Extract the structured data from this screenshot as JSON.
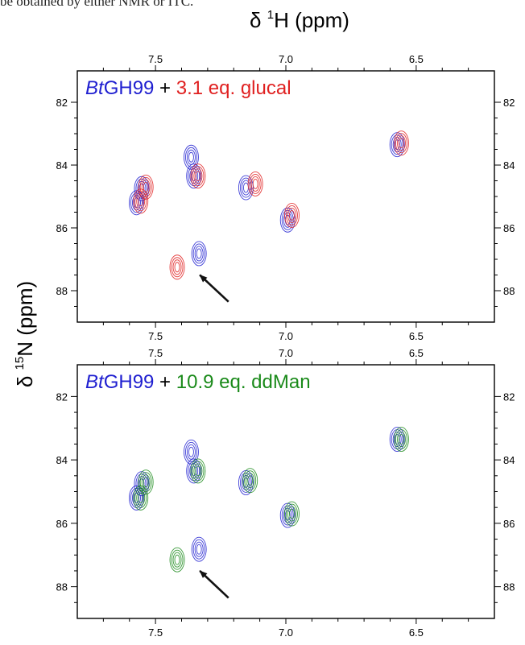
{
  "top_text": "be obtained by either NMR or ITC.",
  "header": {
    "x_title_prefix": "δ ",
    "x_title_sup": "1",
    "x_title_suffix": "H (ppm)",
    "y_title_prefix": "δ ",
    "y_title_sup": "15",
    "y_title_suffix": "N (ppm)"
  },
  "colors": {
    "blue": "#1f1fd0",
    "red": "#e02020",
    "green": "#1a8a1a",
    "black": "#000000",
    "arrow": "#111111"
  },
  "chart_data": [
    {
      "type": "scatter",
      "xlabel": "δ 1H (ppm)",
      "ylabel": "δ 15N (ppm)",
      "xlim": [
        7.8,
        6.2
      ],
      "ylim": [
        89,
        81
      ],
      "x_ticks": [
        "7.5",
        "7.0",
        "6.5"
      ],
      "y_ticks": [
        "82",
        "84",
        "86",
        "88"
      ],
      "title_parts": {
        "prefix_italic": "Bt",
        "prefix": "GH99",
        "plus": " + ",
        "ligand": "3.1 eq. glucal"
      },
      "series": [
        {
          "name": "BtGH99",
          "color": "blue",
          "peaks": [
            {
              "x": 7.55,
              "y": 84.75
            },
            {
              "x": 7.57,
              "y": 85.2
            },
            {
              "x": 7.35,
              "y": 84.35
            },
            {
              "x": 7.36,
              "y": 83.75
            },
            {
              "x": 7.15,
              "y": 84.72
            },
            {
              "x": 6.99,
              "y": 85.75
            },
            {
              "x": 6.57,
              "y": 83.35
            },
            {
              "x": 7.33,
              "y": 86.82
            }
          ]
        },
        {
          "name": "3.1 eq. glucal",
          "color": "red",
          "peaks": [
            {
              "x": 7.54,
              "y": 84.7
            },
            {
              "x": 7.56,
              "y": 85.15
            },
            {
              "x": 7.34,
              "y": 84.35
            },
            {
              "x": 7.12,
              "y": 84.6
            },
            {
              "x": 6.98,
              "y": 85.6
            },
            {
              "x": 6.56,
              "y": 83.3
            },
            {
              "x": 7.42,
              "y": 87.25
            }
          ]
        }
      ],
      "arrow": {
        "from": [
          7.22,
          88.35
        ],
        "to": [
          7.33,
          87.5
        ]
      }
    },
    {
      "type": "scatter",
      "xlabel": "δ 1H (ppm)",
      "ylabel": "δ 15N (ppm)",
      "xlim": [
        7.8,
        6.2
      ],
      "ylim": [
        89,
        81
      ],
      "x_ticks": [
        "7.5",
        "7.0",
        "6.5"
      ],
      "y_ticks": [
        "82",
        "84",
        "86",
        "88"
      ],
      "title_parts": {
        "prefix_italic": "Bt",
        "prefix": "GH99",
        "plus": " + ",
        "ligand": "10.9 eq. ddMan"
      },
      "series": [
        {
          "name": "BtGH99",
          "color": "blue",
          "peaks": [
            {
              "x": 7.55,
              "y": 84.75
            },
            {
              "x": 7.57,
              "y": 85.2
            },
            {
              "x": 7.35,
              "y": 84.35
            },
            {
              "x": 7.36,
              "y": 83.75
            },
            {
              "x": 7.15,
              "y": 84.72
            },
            {
              "x": 6.99,
              "y": 85.75
            },
            {
              "x": 6.57,
              "y": 83.35
            },
            {
              "x": 7.33,
              "y": 86.82
            }
          ]
        },
        {
          "name": "10.9 eq. ddMan",
          "color": "green",
          "peaks": [
            {
              "x": 7.54,
              "y": 84.7
            },
            {
              "x": 7.56,
              "y": 85.2
            },
            {
              "x": 7.34,
              "y": 84.35
            },
            {
              "x": 7.14,
              "y": 84.65
            },
            {
              "x": 6.98,
              "y": 85.7
            },
            {
              "x": 6.56,
              "y": 83.35
            },
            {
              "x": 7.42,
              "y": 87.15
            }
          ]
        }
      ],
      "arrow": {
        "from": [
          7.22,
          88.35
        ],
        "to": [
          7.33,
          87.5
        ]
      }
    }
  ]
}
